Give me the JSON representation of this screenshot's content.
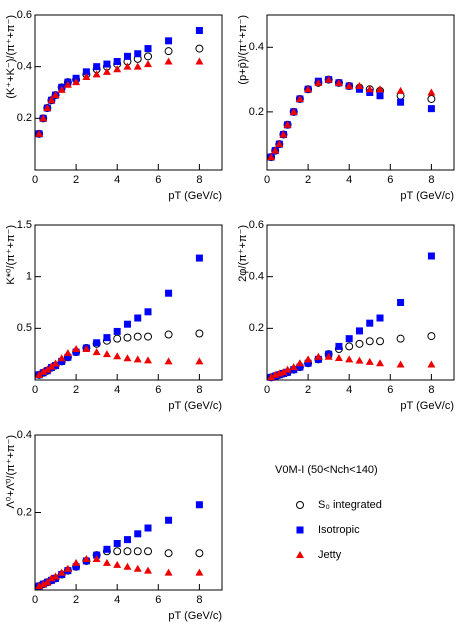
{
  "chart_data": [
    {
      "type": "scatter",
      "ylabel": "(K⁺+K⁻)/(π⁺+π⁻)",
      "xlabel": "pT (GeV/c)",
      "x": [
        0.2,
        0.4,
        0.6,
        0.8,
        1.0,
        1.3,
        1.6,
        2.0,
        2.5,
        3.0,
        3.5,
        4.0,
        4.5,
        5.0,
        5.5,
        6.5,
        8.0
      ],
      "xlim": [
        0,
        9.1
      ],
      "xticks": [
        0,
        2,
        4,
        6,
        8
      ],
      "ylim": [
        0,
        0.6
      ],
      "yticks": [
        0.2,
        0.4,
        0.6
      ],
      "series": [
        {
          "name": "S₀ integrated",
          "color": "#000000",
          "marker": "circle-open",
          "values": [
            0.14,
            0.2,
            0.24,
            0.27,
            0.29,
            0.32,
            0.34,
            0.35,
            0.37,
            0.39,
            0.4,
            0.41,
            0.42,
            0.43,
            0.44,
            0.46,
            0.47
          ]
        },
        {
          "name": "Isotropic",
          "color": "#0000ff",
          "marker": "square",
          "values": [
            0.14,
            0.2,
            0.24,
            0.27,
            0.29,
            0.32,
            0.34,
            0.355,
            0.38,
            0.4,
            0.41,
            0.42,
            0.44,
            0.45,
            0.47,
            0.5,
            0.54
          ]
        },
        {
          "name": "Jetty",
          "color": "#ee0000",
          "marker": "triangle",
          "values": [
            0.14,
            0.2,
            0.24,
            0.27,
            0.29,
            0.31,
            0.33,
            0.34,
            0.36,
            0.37,
            0.38,
            0.39,
            0.4,
            0.4,
            0.41,
            0.42,
            0.42
          ]
        }
      ]
    },
    {
      "type": "scatter",
      "ylabel": "(p+p̄)/(π⁺+π⁻)",
      "xlabel": "pT (GeV/c)",
      "x": [
        0.2,
        0.4,
        0.6,
        0.8,
        1.0,
        1.3,
        1.6,
        2.0,
        2.5,
        3.0,
        3.5,
        4.0,
        4.5,
        5.0,
        5.5,
        6.5,
        8.0
      ],
      "xlim": [
        0,
        9.1
      ],
      "xticks": [
        0,
        2,
        4,
        6,
        8
      ],
      "ylim": [
        0.02,
        0.5
      ],
      "yticks": [
        0.2,
        0.4
      ],
      "series": [
        {
          "name": "S₀ integrated",
          "color": "#000000",
          "marker": "circle-open",
          "values": [
            0.06,
            0.08,
            0.1,
            0.13,
            0.16,
            0.2,
            0.24,
            0.27,
            0.29,
            0.3,
            0.29,
            0.28,
            0.275,
            0.27,
            0.265,
            0.25,
            0.24
          ]
        },
        {
          "name": "Isotropic",
          "color": "#0000ff",
          "marker": "square",
          "values": [
            0.06,
            0.08,
            0.1,
            0.13,
            0.16,
            0.2,
            0.24,
            0.27,
            0.295,
            0.3,
            0.29,
            0.28,
            0.27,
            0.26,
            0.25,
            0.23,
            0.21
          ]
        },
        {
          "name": "Jetty",
          "color": "#ee0000",
          "marker": "triangle",
          "values": [
            0.06,
            0.08,
            0.1,
            0.13,
            0.16,
            0.2,
            0.24,
            0.27,
            0.29,
            0.3,
            0.29,
            0.28,
            0.28,
            0.27,
            0.27,
            0.265,
            0.26
          ]
        }
      ]
    },
    {
      "type": "scatter",
      "ylabel": "K*⁰/(π⁺+π⁻)",
      "xlabel": "pT (GeV/c)",
      "x": [
        0.2,
        0.4,
        0.6,
        0.8,
        1.0,
        1.3,
        1.6,
        2.0,
        2.5,
        3.0,
        3.5,
        4.0,
        4.5,
        5.0,
        5.5,
        6.5,
        8.0
      ],
      "xlim": [
        0,
        9.1
      ],
      "xticks": [
        0,
        2,
        4,
        6,
        8
      ],
      "ylim": [
        0,
        1.5
      ],
      "yticks": [
        0.5,
        1,
        1.5
      ],
      "series": [
        {
          "name": "S₀ integrated",
          "color": "#000000",
          "marker": "circle-open",
          "values": [
            0.05,
            0.07,
            0.09,
            0.12,
            0.14,
            0.18,
            0.22,
            0.27,
            0.31,
            0.35,
            0.38,
            0.4,
            0.41,
            0.42,
            0.42,
            0.44,
            0.45
          ]
        },
        {
          "name": "Isotropic",
          "color": "#0000ff",
          "marker": "square",
          "values": [
            0.05,
            0.07,
            0.09,
            0.12,
            0.14,
            0.18,
            0.22,
            0.27,
            0.31,
            0.36,
            0.41,
            0.47,
            0.54,
            0.6,
            0.66,
            0.84,
            1.18
          ]
        },
        {
          "name": "Jetty",
          "color": "#ee0000",
          "marker": "triangle",
          "values": [
            0.05,
            0.08,
            0.1,
            0.13,
            0.16,
            0.21,
            0.26,
            0.3,
            0.3,
            0.27,
            0.25,
            0.23,
            0.21,
            0.2,
            0.19,
            0.18,
            0.18
          ]
        }
      ]
    },
    {
      "type": "scatter",
      "ylabel": "2φ/(π⁺+π⁻)",
      "xlabel": "pT (GeV/c)",
      "x": [
        0.2,
        0.4,
        0.6,
        0.8,
        1.0,
        1.3,
        1.6,
        2.0,
        2.5,
        3.0,
        3.5,
        4.0,
        4.5,
        5.0,
        5.5,
        6.5,
        8.0
      ],
      "xlim": [
        0,
        9.1
      ],
      "xticks": [
        0,
        2,
        4,
        6,
        8
      ],
      "ylim": [
        0,
        0.6
      ],
      "yticks": [
        0.2,
        0.4,
        0.6
      ],
      "series": [
        {
          "name": "S₀ integrated",
          "color": "#000000",
          "marker": "circle-open",
          "values": [
            0.01,
            0.015,
            0.02,
            0.025,
            0.03,
            0.04,
            0.05,
            0.065,
            0.08,
            0.1,
            0.12,
            0.13,
            0.14,
            0.15,
            0.15,
            0.16,
            0.17
          ]
        },
        {
          "name": "Isotropic",
          "color": "#0000ff",
          "marker": "square",
          "values": [
            0.01,
            0.015,
            0.02,
            0.025,
            0.03,
            0.04,
            0.05,
            0.065,
            0.08,
            0.1,
            0.13,
            0.16,
            0.19,
            0.22,
            0.24,
            0.3,
            0.48
          ]
        },
        {
          "name": "Jetty",
          "color": "#ee0000",
          "marker": "triangle",
          "values": [
            0.01,
            0.02,
            0.025,
            0.03,
            0.04,
            0.05,
            0.065,
            0.08,
            0.09,
            0.09,
            0.085,
            0.08,
            0.075,
            0.07,
            0.065,
            0.06,
            0.06
          ]
        }
      ]
    },
    {
      "type": "scatter",
      "ylabel": "Λ⁰+Λ̄⁰/(π⁺+π⁻)",
      "xlabel": "pT (GeV/c)",
      "x": [
        0.2,
        0.4,
        0.6,
        0.8,
        1.0,
        1.3,
        1.6,
        2.0,
        2.5,
        3.0,
        3.5,
        4.0,
        4.5,
        5.0,
        5.5,
        6.5,
        8.0
      ],
      "xlim": [
        0,
        9.1
      ],
      "xticks": [
        0,
        2,
        4,
        6,
        8
      ],
      "ylim": [
        0,
        0.4
      ],
      "yticks": [
        0.2,
        0.4
      ],
      "series": [
        {
          "name": "S₀ integrated",
          "color": "#000000",
          "marker": "circle-open",
          "values": [
            0.01,
            0.015,
            0.02,
            0.025,
            0.03,
            0.04,
            0.05,
            0.06,
            0.075,
            0.09,
            0.1,
            0.1,
            0.1,
            0.1,
            0.1,
            0.095,
            0.095
          ]
        },
        {
          "name": "Isotropic",
          "color": "#0000ff",
          "marker": "square",
          "values": [
            0.01,
            0.015,
            0.02,
            0.025,
            0.03,
            0.04,
            0.05,
            0.06,
            0.075,
            0.09,
            0.105,
            0.12,
            0.13,
            0.145,
            0.16,
            0.18,
            0.22
          ]
        },
        {
          "name": "Jetty",
          "color": "#ee0000",
          "marker": "triangle",
          "values": [
            0.01,
            0.015,
            0.02,
            0.03,
            0.035,
            0.045,
            0.055,
            0.07,
            0.08,
            0.08,
            0.07,
            0.065,
            0.06,
            0.055,
            0.05,
            0.045,
            0.045
          ]
        }
      ]
    }
  ],
  "legend": {
    "title": "V0M-I (50<Nch<140)"
  }
}
